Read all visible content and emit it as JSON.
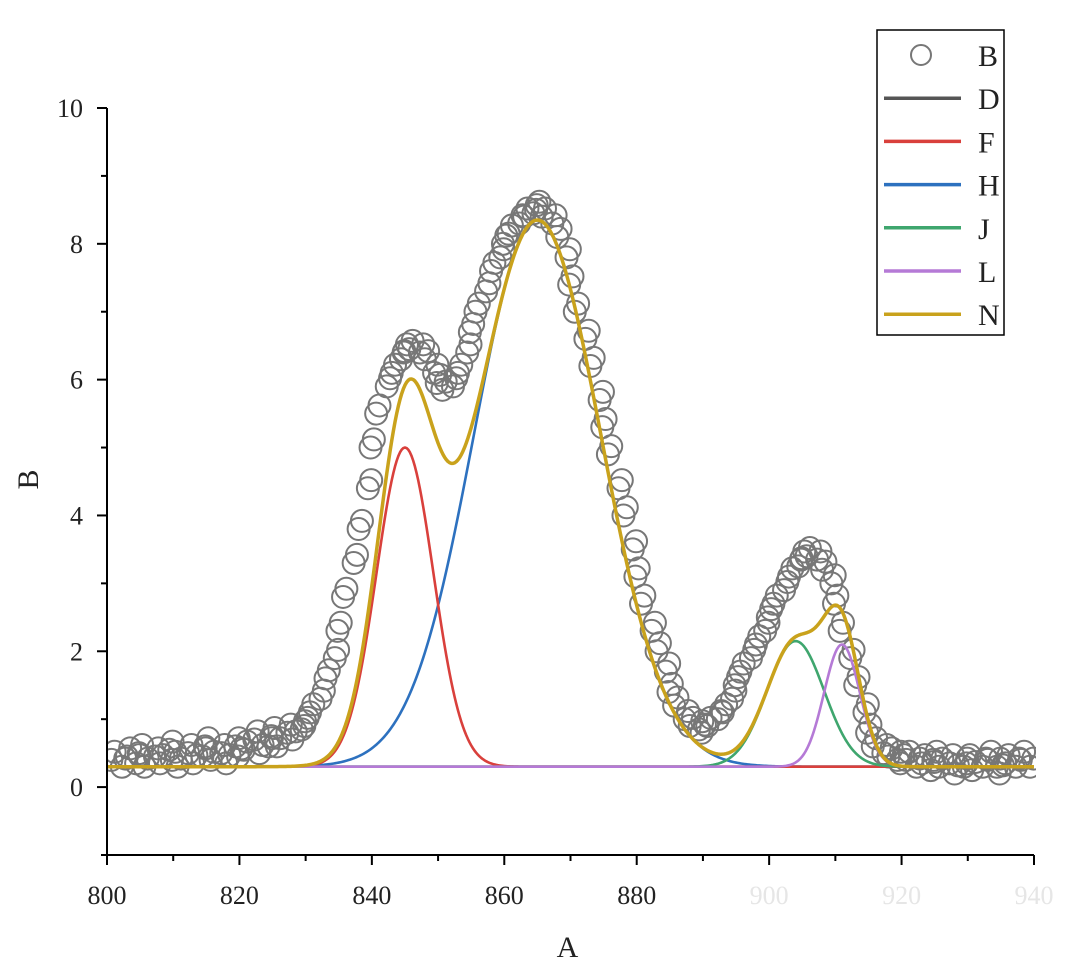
{
  "chart_data": {
    "type": "line",
    "title": "",
    "xlabel": "A",
    "ylabel": "B",
    "xlim": [
      800,
      940
    ],
    "ylim": [
      -1,
      10
    ],
    "x_ticks": [
      800,
      820,
      840,
      860,
      880
    ],
    "x_ticks_faint": [
      900,
      920,
      940
    ],
    "y_ticks": [
      0,
      2,
      4,
      6,
      8,
      10
    ],
    "grid": false,
    "legend_position": "top-right",
    "baseline": 0.3,
    "series": [
      {
        "name": "B",
        "kind": "scatter",
        "color": "#777777",
        "marker": "open-circle"
      },
      {
        "name": "D",
        "kind": "line",
        "color": "#555555",
        "model": "baseline"
      },
      {
        "name": "F",
        "kind": "line",
        "color": "#d9403c",
        "model": "gaussian",
        "center": 845,
        "height": 4.7,
        "sigma": 4.3
      },
      {
        "name": "H",
        "kind": "line",
        "color": "#2d71bf",
        "model": "gaussian",
        "center": 865,
        "height": 8.05,
        "sigma": 9.6
      },
      {
        "name": "J",
        "kind": "line",
        "color": "#3fa66e",
        "model": "gaussian",
        "center": 904,
        "height": 1.85,
        "sigma": 4.3
      },
      {
        "name": "L",
        "kind": "line",
        "color": "#b57ad6",
        "model": "gaussian",
        "center": 911,
        "height": 1.8,
        "sigma": 2.7
      },
      {
        "name": "N",
        "kind": "line",
        "color": "#c9a21c",
        "model": "sum"
      }
    ],
    "scatter_points": [
      [
        801,
        0.4
      ],
      [
        802,
        0.3
      ],
      [
        803,
        0.45
      ],
      [
        804,
        0.35
      ],
      [
        805,
        0.5
      ],
      [
        806,
        0.3
      ],
      [
        807,
        0.45
      ],
      [
        808,
        0.35
      ],
      [
        809,
        0.55
      ],
      [
        810,
        0.4
      ],
      [
        811,
        0.3
      ],
      [
        812,
        0.5
      ],
      [
        813,
        0.35
      ],
      [
        814,
        0.45
      ],
      [
        815,
        0.6
      ],
      [
        816,
        0.4
      ],
      [
        817,
        0.5
      ],
      [
        818,
        0.35
      ],
      [
        819,
        0.6
      ],
      [
        820,
        0.45
      ],
      [
        821,
        0.55
      ],
      [
        822,
        0.7
      ],
      [
        823,
        0.5
      ],
      [
        824,
        0.6
      ],
      [
        825,
        0.75
      ],
      [
        826,
        0.6
      ],
      [
        827,
        0.8
      ],
      [
        828,
        0.7
      ],
      [
        829,
        0.85
      ],
      [
        830,
        0.9
      ],
      [
        831,
        1.1
      ],
      [
        832,
        1.3
      ],
      [
        833,
        1.6
      ],
      [
        834,
        1.9
      ],
      [
        835,
        2.3
      ],
      [
        836,
        2.8
      ],
      [
        837,
        3.3
      ],
      [
        838,
        3.8
      ],
      [
        839,
        4.4
      ],
      [
        840,
        5.0
      ],
      [
        841,
        5.5
      ],
      [
        842,
        5.9
      ],
      [
        843,
        6.1
      ],
      [
        844,
        6.3
      ],
      [
        845,
        6.4
      ],
      [
        846,
        6.45
      ],
      [
        847,
        6.4
      ],
      [
        848,
        6.3
      ],
      [
        849,
        6.1
      ],
      [
        850,
        5.95
      ],
      [
        851,
        5.85
      ],
      [
        852,
        5.9
      ],
      [
        853,
        6.1
      ],
      [
        854,
        6.4
      ],
      [
        855,
        6.7
      ],
      [
        856,
        7.0
      ],
      [
        857,
        7.3
      ],
      [
        858,
        7.6
      ],
      [
        859,
        7.8
      ],
      [
        860,
        8.0
      ],
      [
        861,
        8.15
      ],
      [
        862,
        8.3
      ],
      [
        863,
        8.4
      ],
      [
        864,
        8.45
      ],
      [
        865,
        8.5
      ],
      [
        866,
        8.4
      ],
      [
        867,
        8.3
      ],
      [
        868,
        8.1
      ],
      [
        869,
        7.8
      ],
      [
        870,
        7.4
      ],
      [
        871,
        7.0
      ],
      [
        872,
        6.6
      ],
      [
        873,
        6.2
      ],
      [
        874,
        5.7
      ],
      [
        875,
        5.3
      ],
      [
        876,
        4.9
      ],
      [
        877,
        4.4
      ],
      [
        878,
        4.0
      ],
      [
        879,
        3.5
      ],
      [
        880,
        3.1
      ],
      [
        881,
        2.7
      ],
      [
        882,
        2.3
      ],
      [
        883,
        2.0
      ],
      [
        884,
        1.7
      ],
      [
        885,
        1.4
      ],
      [
        886,
        1.2
      ],
      [
        887,
        1.0
      ],
      [
        888,
        0.9
      ],
      [
        889,
        0.85
      ],
      [
        890,
        0.8
      ],
      [
        891,
        0.9
      ],
      [
        892,
        1.0
      ],
      [
        893,
        1.1
      ],
      [
        894,
        1.3
      ],
      [
        895,
        1.5
      ],
      [
        896,
        1.7
      ],
      [
        897,
        1.9
      ],
      [
        898,
        2.1
      ],
      [
        899,
        2.3
      ],
      [
        900,
        2.5
      ],
      [
        901,
        2.7
      ],
      [
        902,
        2.9
      ],
      [
        903,
        3.1
      ],
      [
        904,
        3.25
      ],
      [
        905,
        3.35
      ],
      [
        906,
        3.4
      ],
      [
        907,
        3.35
      ],
      [
        908,
        3.2
      ],
      [
        909,
        3.0
      ],
      [
        910,
        2.7
      ],
      [
        911,
        2.3
      ],
      [
        912,
        1.9
      ],
      [
        913,
        1.5
      ],
      [
        914,
        1.1
      ],
      [
        915,
        0.8
      ],
      [
        916,
        0.6
      ],
      [
        917,
        0.5
      ],
      [
        918,
        0.45
      ],
      [
        919,
        0.4
      ],
      [
        920,
        0.35
      ],
      [
        921,
        0.4
      ],
      [
        922,
        0.3
      ],
      [
        923,
        0.35
      ],
      [
        924,
        0.25
      ],
      [
        925,
        0.4
      ],
      [
        926,
        0.3
      ],
      [
        927,
        0.35
      ],
      [
        928,
        0.2
      ],
      [
        929,
        0.3
      ],
      [
        930,
        0.35
      ],
      [
        931,
        0.25
      ],
      [
        932,
        0.3
      ],
      [
        933,
        0.4
      ],
      [
        934,
        0.3
      ],
      [
        935,
        0.2
      ],
      [
        936,
        0.35
      ],
      [
        937,
        0.3
      ],
      [
        938,
        0.4
      ],
      [
        939,
        0.3
      ]
    ]
  }
}
